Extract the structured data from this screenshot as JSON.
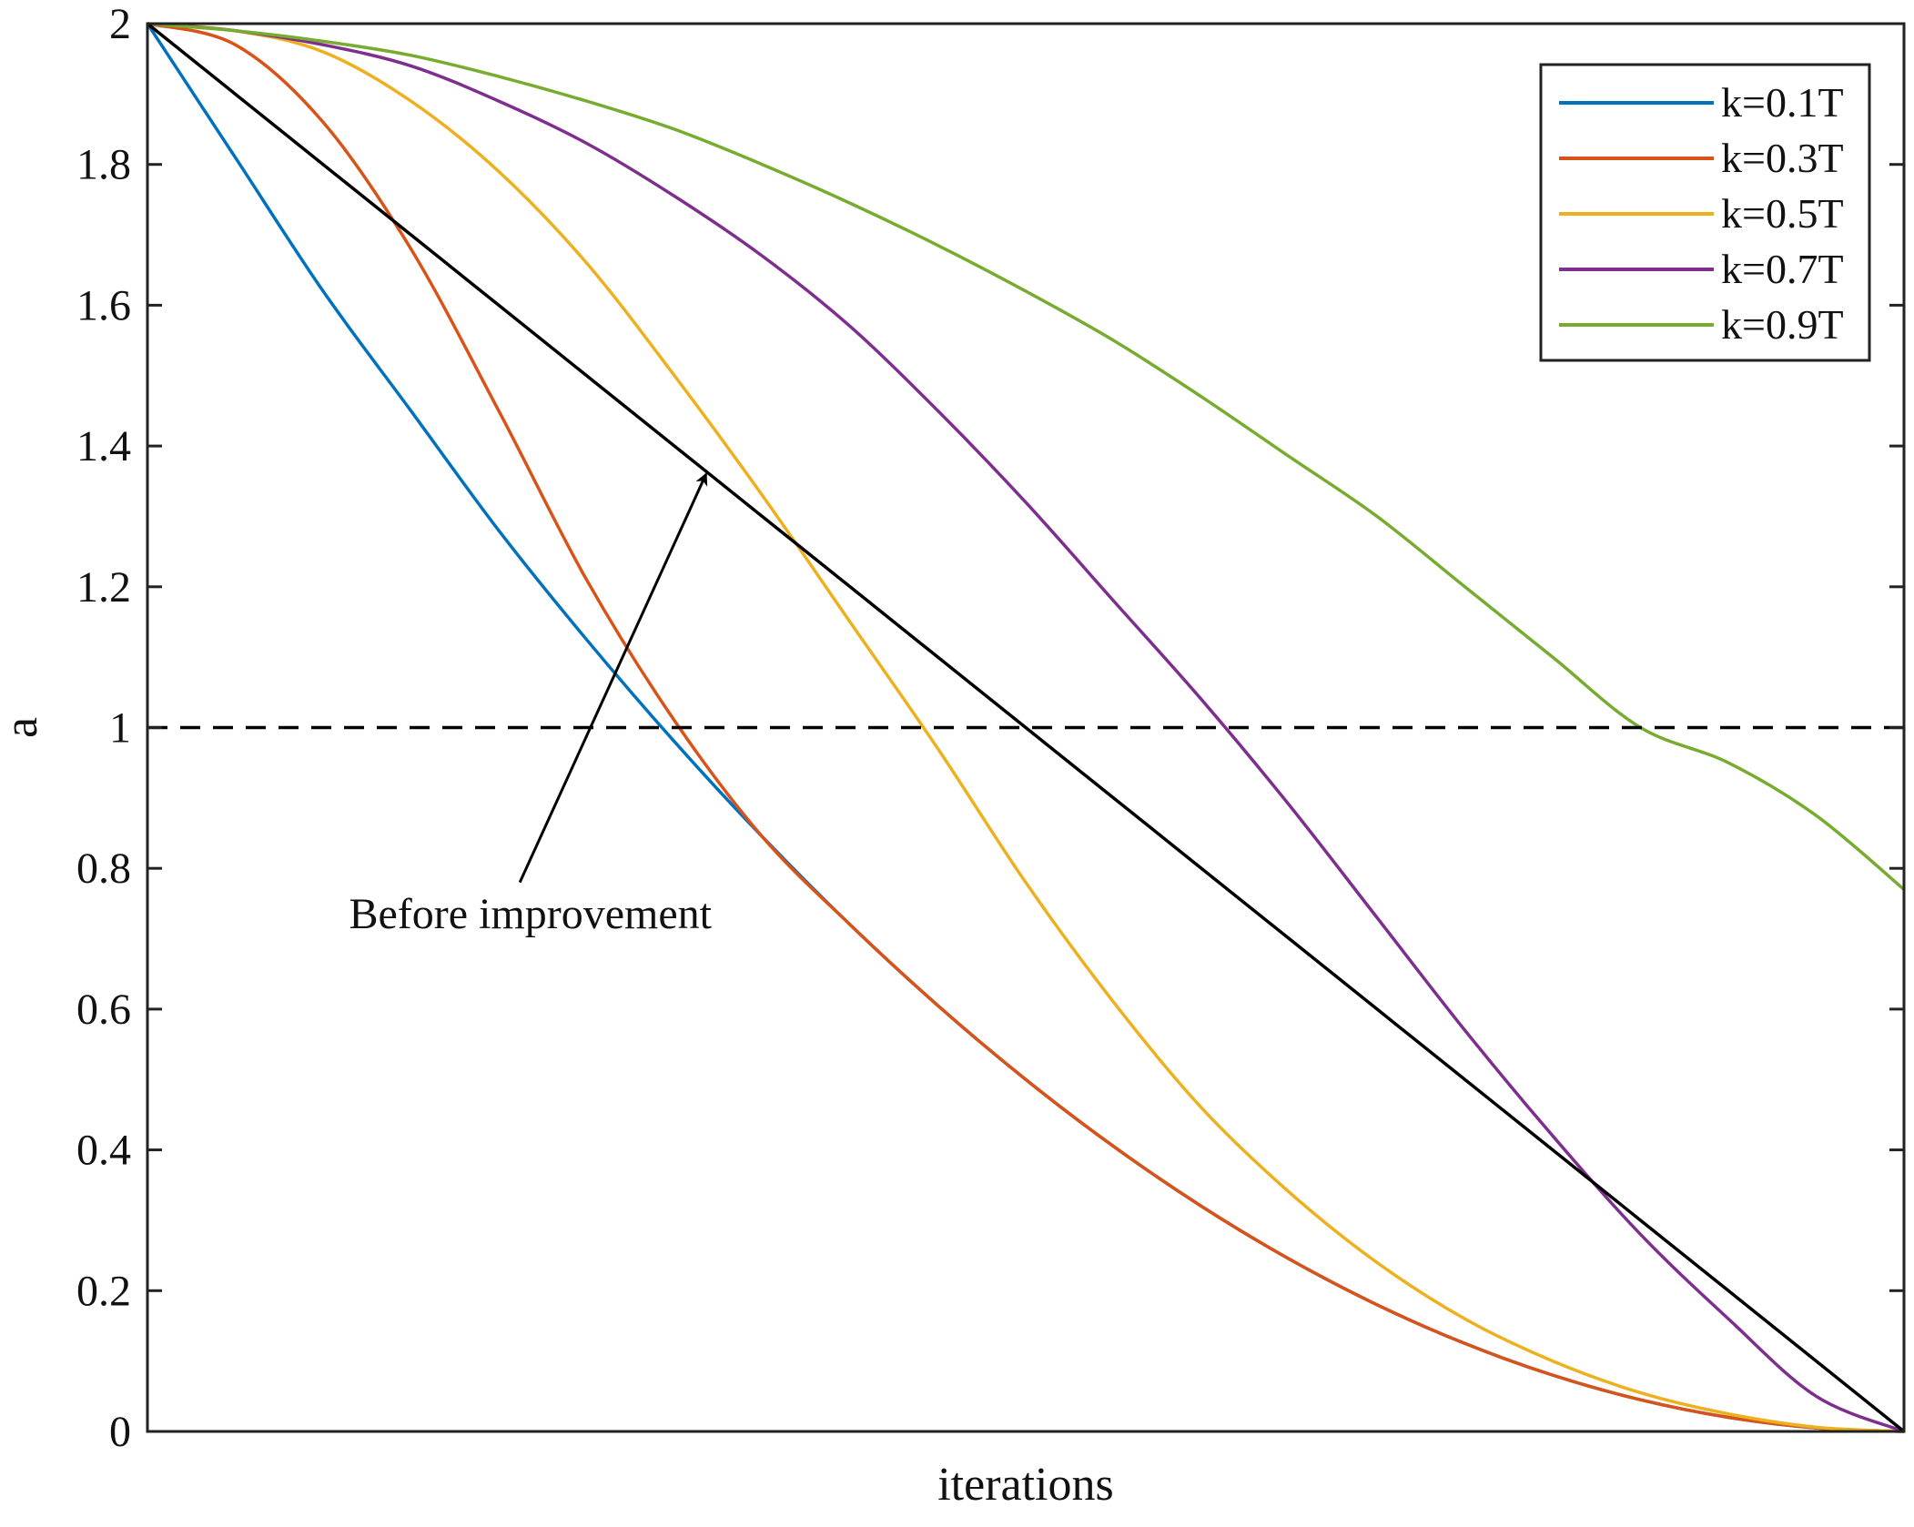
{
  "chart_data": {
    "type": "line",
    "xlabel": "iterations",
    "ylabel": "a",
    "xlim": [
      0,
      1
    ],
    "ylim": [
      0,
      2
    ],
    "x_ticks_shown": false,
    "y_ticks": [
      0,
      0.2,
      0.4,
      0.6,
      0.8,
      1,
      1.2,
      1.4,
      1.6,
      1.8,
      2
    ],
    "y_tick_labels": [
      "0",
      "0.2",
      "0.4",
      "0.6",
      "0.8",
      "1",
      "1.2",
      "1.4",
      "1.6",
      "1.8",
      "2"
    ],
    "grid": false,
    "legend_position": "top-right",
    "x": [
      0,
      0.05,
      0.1,
      0.15,
      0.2,
      0.25,
      0.3,
      0.35,
      0.4,
      0.45,
      0.5,
      0.55,
      0.6,
      0.65,
      0.7,
      0.75,
      0.8,
      0.85,
      0.9,
      0.95,
      1
    ],
    "series": [
      {
        "name": "k=0.1T",
        "color": "#0072BD",
        "values": [
          2,
          1.81,
          1.62,
          1.45,
          1.28,
          1.125,
          0.98,
          0.845,
          0.72,
          0.605,
          0.5,
          0.405,
          0.32,
          0.245,
          0.18,
          0.125,
          0.08,
          0.045,
          0.02,
          0.005,
          0
        ]
      },
      {
        "name": "k=0.3T",
        "color": "#D95319",
        "values": [
          2,
          1.97,
          1.86,
          1.68,
          1.45,
          1.21,
          1.01,
          0.845,
          0.72,
          0.605,
          0.5,
          0.405,
          0.32,
          0.245,
          0.18,
          0.125,
          0.08,
          0.045,
          0.02,
          0.005,
          0
        ]
      },
      {
        "name": "k=0.5T",
        "color": "#EDB120",
        "values": [
          2,
          1.99,
          1.96,
          1.89,
          1.79,
          1.66,
          1.5,
          1.33,
          1.15,
          0.97,
          0.78,
          0.61,
          0.46,
          0.34,
          0.24,
          0.16,
          0.1,
          0.055,
          0.025,
          0.006,
          0
        ]
      },
      {
        "name": "k=0.7T",
        "color": "#7E2F8E",
        "values": [
          2,
          1.99,
          1.97,
          1.94,
          1.89,
          1.83,
          1.755,
          1.67,
          1.57,
          1.45,
          1.32,
          1.18,
          1.04,
          0.89,
          0.73,
          0.57,
          0.42,
          0.28,
          0.16,
          0.05,
          0
        ]
      },
      {
        "name": "k=0.9T",
        "color": "#77AC30",
        "values": [
          2,
          1.99,
          1.975,
          1.955,
          1.925,
          1.89,
          1.85,
          1.8,
          1.745,
          1.685,
          1.62,
          1.55,
          1.47,
          1.385,
          1.3,
          1.2,
          1.1,
          1.0,
          0.95,
          0.875,
          0.77
        ]
      },
      {
        "color": "#000000",
        "values": [
          2,
          1.9,
          1.8,
          1.7,
          1.6,
          1.5,
          1.4,
          1.3,
          1.2,
          1.1,
          1.0,
          0.9,
          0.8,
          0.7,
          0.6,
          0.5,
          0.4,
          0.3,
          0.2,
          0.1,
          0
        ]
      }
    ],
    "reference_lines": [
      {
        "y": 1,
        "style": "dashed",
        "color": "#000000"
      }
    ],
    "annotations": [
      {
        "text": "Before improvement",
        "arrow_to": {
          "x": 0.318,
          "y": 1.36
        }
      }
    ]
  }
}
